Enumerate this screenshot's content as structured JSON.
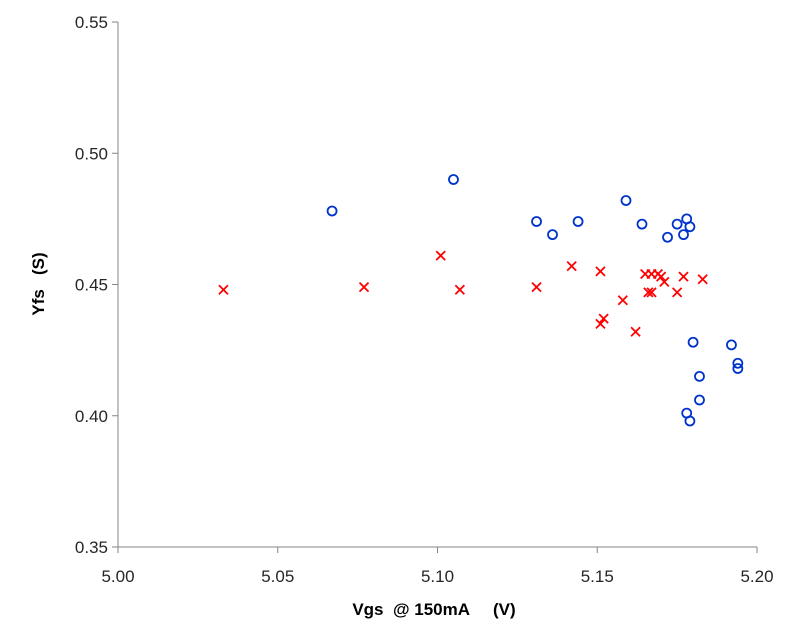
{
  "chart_data": {
    "type": "scatter",
    "title": "",
    "xlabel": "Vgs  @ 150mA     (V)",
    "ylabel": "Yfs   (S)",
    "xlim": [
      5.0,
      5.2
    ],
    "ylim": [
      0.35,
      0.55
    ],
    "x_ticks": [
      "5.00",
      "5.05",
      "5.10",
      "5.15",
      "5.20"
    ],
    "y_ticks": [
      "0.35",
      "0.40",
      "0.45",
      "0.50",
      "0.55"
    ],
    "grid": false,
    "legend": "none",
    "series": [
      {
        "marker": "circle",
        "color": "#0033cc",
        "points": [
          [
            5.067,
            0.478
          ],
          [
            5.105,
            0.49
          ],
          [
            5.131,
            0.474
          ],
          [
            5.136,
            0.469
          ],
          [
            5.144,
            0.474
          ],
          [
            5.159,
            0.482
          ],
          [
            5.164,
            0.473
          ],
          [
            5.172,
            0.468
          ],
          [
            5.175,
            0.473
          ],
          [
            5.177,
            0.469
          ],
          [
            5.178,
            0.475
          ],
          [
            5.179,
            0.472
          ],
          [
            5.18,
            0.428
          ],
          [
            5.182,
            0.415
          ],
          [
            5.182,
            0.406
          ],
          [
            5.178,
            0.401
          ],
          [
            5.179,
            0.398
          ],
          [
            5.192,
            0.427
          ],
          [
            5.194,
            0.42
          ],
          [
            5.194,
            0.418
          ]
        ]
      },
      {
        "marker": "x",
        "color": "#ff0000",
        "points": [
          [
            5.033,
            0.448
          ],
          [
            5.077,
            0.449
          ],
          [
            5.101,
            0.461
          ],
          [
            5.107,
            0.448
          ],
          [
            5.131,
            0.449
          ],
          [
            5.142,
            0.457
          ],
          [
            5.151,
            0.455
          ],
          [
            5.151,
            0.435
          ],
          [
            5.152,
            0.437
          ],
          [
            5.158,
            0.444
          ],
          [
            5.162,
            0.432
          ],
          [
            5.165,
            0.454
          ],
          [
            5.166,
            0.447
          ],
          [
            5.167,
            0.447
          ],
          [
            5.167,
            0.454
          ],
          [
            5.169,
            0.454
          ],
          [
            5.17,
            0.453
          ],
          [
            5.171,
            0.451
          ],
          [
            5.175,
            0.447
          ],
          [
            5.177,
            0.453
          ],
          [
            5.183,
            0.452
          ]
        ]
      }
    ]
  }
}
